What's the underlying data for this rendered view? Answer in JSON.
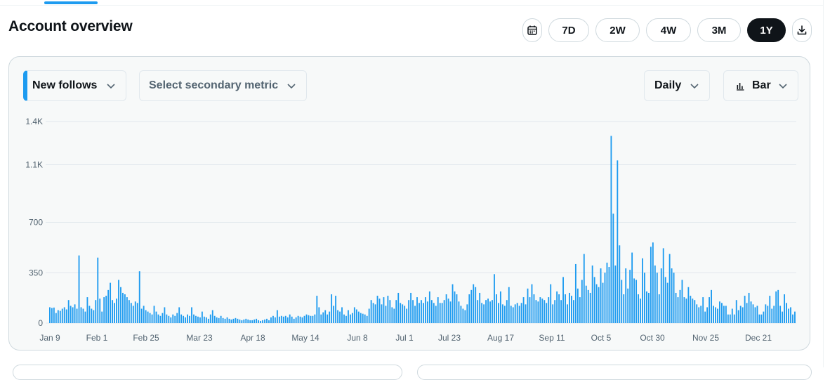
{
  "header": {
    "title": "Account overview",
    "ranges": [
      "7D",
      "2W",
      "4W",
      "3M",
      "1Y"
    ],
    "active_range": "1Y",
    "icons": {
      "calendar": "calendar-icon",
      "download": "download-icon"
    }
  },
  "controls": {
    "primary_metric": "New follows",
    "secondary_metric_placeholder": "Select secondary metric",
    "interval": "Daily",
    "chart_type": "Bar"
  },
  "colors": {
    "accent": "#1d9bf0",
    "bar": "#1d9bf0",
    "text": "#0f1419",
    "muted": "#536471",
    "active_pill": "#0f1419"
  },
  "chart_data": {
    "type": "bar",
    "title": "",
    "xlabel": "",
    "ylabel": "",
    "series_name": "New follows",
    "interval": "daily",
    "ylim": [
      0,
      1400
    ],
    "yticks": [
      0,
      350,
      700,
      1100,
      1400
    ],
    "ytick_labels": [
      "0",
      "350",
      "700",
      "1.1K",
      "1.4K"
    ],
    "xtick_labels": [
      "Jan 9",
      "Feb 1",
      "Feb 25",
      "Mar 23",
      "Apr 18",
      "May 14",
      "Jun 8",
      "Jul 1",
      "Jul 23",
      "Aug 17",
      "Sep 11",
      "Oct 5",
      "Oct 30",
      "Nov 25",
      "Dec 21"
    ],
    "values": [
      110,
      105,
      108,
      70,
      90,
      85,
      100,
      110,
      95,
      160,
      120,
      110,
      130,
      100,
      470,
      110,
      100,
      80,
      180,
      120,
      100,
      90,
      160,
      455,
      170,
      80,
      180,
      190,
      230,
      280,
      160,
      140,
      170,
      300,
      250,
      210,
      200,
      180,
      160,
      140,
      120,
      150,
      140,
      360,
      100,
      120,
      90,
      80,
      70,
      60,
      120,
      80,
      60,
      50,
      70,
      110,
      60,
      50,
      40,
      60,
      50,
      70,
      110,
      60,
      50,
      40,
      60,
      50,
      110,
      60,
      50,
      45,
      40,
      80,
      45,
      40,
      30,
      60,
      90,
      50,
      40,
      35,
      50,
      35,
      30,
      40,
      30,
      25,
      30,
      35,
      30,
      25,
      20,
      25,
      30,
      25,
      20,
      20,
      25,
      30,
      20,
      15,
      20,
      25,
      30,
      20,
      40,
      50,
      40,
      90,
      45,
      50,
      45,
      50,
      40,
      60,
      45,
      30,
      40,
      50,
      45,
      40,
      50,
      60,
      55,
      50,
      50,
      60,
      190,
      110,
      60,
      75,
      90,
      60,
      80,
      200,
      120,
      190,
      90,
      80,
      110,
      60,
      50,
      90,
      60,
      70,
      110,
      95,
      80,
      70,
      65,
      60,
      50,
      100,
      160,
      140,
      130,
      190,
      170,
      130,
      180,
      120,
      190,
      160,
      110,
      100,
      160,
      210,
      140,
      130,
      120,
      100,
      160,
      210,
      160,
      120,
      180,
      140,
      160,
      140,
      180,
      150,
      220,
      160,
      140,
      120,
      180,
      140,
      140,
      160,
      200,
      170,
      150,
      270,
      220,
      200,
      150,
      120,
      100,
      90,
      130,
      200,
      230,
      270,
      250,
      160,
      210,
      140,
      130,
      160,
      170,
      150,
      160,
      340,
      200,
      140,
      220,
      130,
      120,
      160,
      250,
      120,
      110,
      130,
      140,
      120,
      140,
      180,
      130,
      240,
      180,
      270,
      200,
      160,
      150,
      180,
      170,
      160,
      140,
      180,
      270,
      130,
      160,
      220,
      200,
      160,
      320,
      200,
      130,
      210,
      190,
      160,
      410,
      240,
      180,
      300,
      480,
      260,
      230,
      210,
      400,
      320,
      270,
      250,
      380,
      280,
      350,
      420,
      390,
      1300,
      760,
      400,
      1130,
      540,
      300,
      200,
      380,
      240,
      370,
      490,
      310,
      300,
      200,
      170,
      450,
      350,
      220,
      210,
      530,
      560,
      400,
      350,
      200,
      380,
      520,
      320,
      280,
      480,
      380,
      350,
      210,
      180,
      230,
      300,
      180,
      170,
      250,
      190,
      170,
      160,
      130,
      110,
      120,
      180,
      80,
      110,
      180,
      230,
      120,
      110,
      100,
      150,
      140,
      120,
      120,
      60,
      60,
      100,
      60,
      160,
      90,
      120,
      110,
      190,
      140,
      210,
      150,
      130,
      110,
      120,
      60,
      60,
      80,
      130,
      120,
      190,
      100,
      120,
      220,
      230,
      120,
      80,
      200,
      140,
      100,
      110,
      60,
      80
    ]
  }
}
